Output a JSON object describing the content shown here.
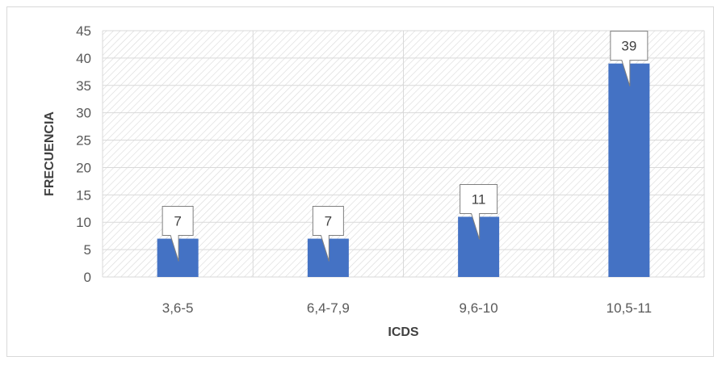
{
  "chart_data": {
    "type": "bar",
    "categories": [
      "3,6-5",
      "6,4-7,9",
      "9,6-10",
      "10,5-11"
    ],
    "values": [
      7,
      7,
      11,
      39
    ],
    "title": "",
    "xlabel": "ICDS",
    "ylabel": "FRECUENCIA",
    "ylim": [
      0,
      45
    ],
    "yticks": [
      "0",
      "5",
      "10",
      "15",
      "20",
      "25",
      "30",
      "35",
      "40",
      "45"
    ],
    "data_labels": [
      "7",
      "7",
      "11",
      "39"
    ],
    "grid": true,
    "legend": "none",
    "colors": {
      "bar": "#4472c4",
      "grid": "#d9d9d9",
      "hatch": "#d9d9d9",
      "callout_border": "#7f7f7f"
    }
  }
}
